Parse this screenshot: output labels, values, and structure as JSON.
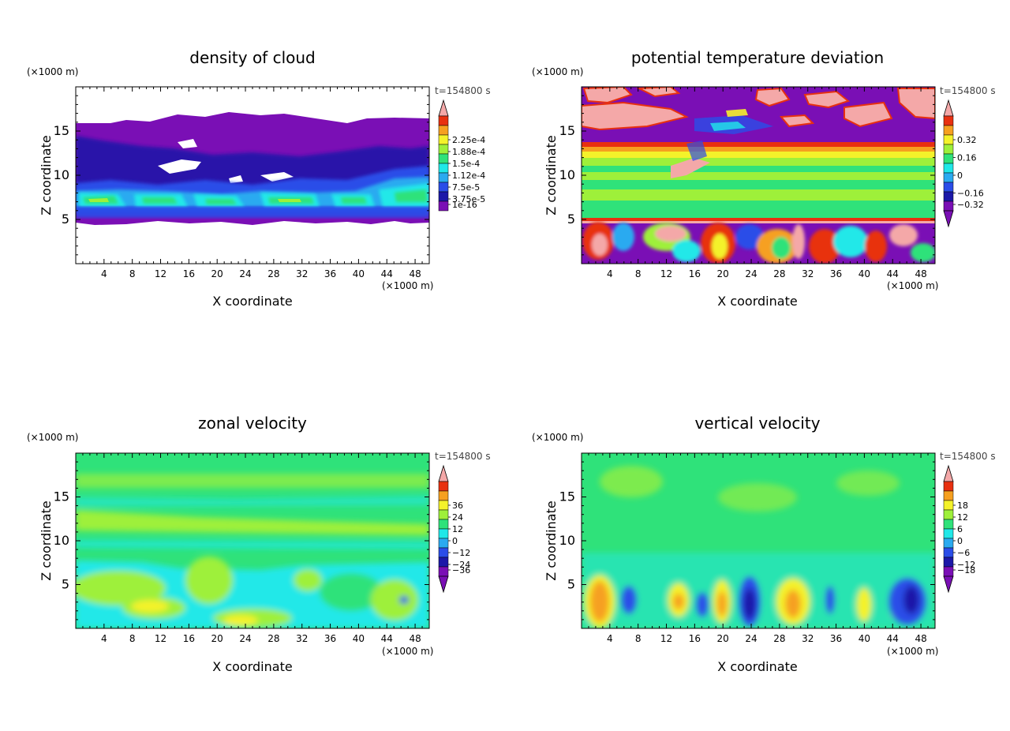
{
  "figure": {
    "colors": {
      "purple": "#7a0fb5",
      "navy": "#1c18a8",
      "blue": "#2a4de8",
      "lightblue": "#2aaaf0",
      "cyan": "#20e8e8",
      "green": "#2fe27a",
      "lime": "#9ef03a",
      "yellow": "#f4f22a",
      "orange": "#f6a020",
      "red": "#e83010",
      "pink": "#f4a8a8",
      "white": "#ffffff"
    }
  },
  "chart_data": [
    {
      "type": "heatmap",
      "title": "density of cloud",
      "time_label": "t=154800 s",
      "xlabel": "X coordinate",
      "ylabel": "Z coordinate",
      "x_unit": "(×1000 m)",
      "y_unit": "(×1000 m)",
      "xlim": [
        0,
        50
      ],
      "ylim": [
        0,
        20
      ],
      "x_ticks": [
        4,
        8,
        12,
        16,
        20,
        24,
        28,
        32,
        36,
        40,
        44,
        48
      ],
      "y_ticks": [
        5,
        10,
        15
      ],
      "colorbar_labels": [
        "2.25e-4",
        "1.88e-4",
        "1.5e-4",
        "1.12e-4",
        "7.5e-5",
        "3.75e-5",
        "1e-16"
      ],
      "colorbar_levels": [
        "pink",
        "red",
        "orange",
        "yellow",
        "lime",
        "green",
        "cyan",
        "lightblue",
        "blue",
        "navy",
        "purple"
      ],
      "under_color": "white",
      "colorbar_triangle_bottom": false
    },
    {
      "type": "heatmap",
      "title": "potential temperature deviation",
      "time_label": "t=154800 s",
      "xlabel": "X coordinate",
      "ylabel": "Z coordinate",
      "x_unit": "(×1000 m)",
      "y_unit": "(×1000 m)",
      "xlim": [
        0,
        50
      ],
      "ylim": [
        0,
        20
      ],
      "x_ticks": [
        4,
        8,
        12,
        16,
        20,
        24,
        28,
        32,
        36,
        40,
        44,
        48
      ],
      "y_ticks": [
        5,
        10,
        15
      ],
      "colorbar_labels": [
        "0.32",
        "0.16",
        "0",
        "−0.16",
        "−0.32"
      ],
      "colorbar_levels": [
        "pink",
        "red",
        "orange",
        "yellow",
        "lime",
        "green",
        "cyan",
        "lightblue",
        "blue",
        "navy",
        "purple"
      ],
      "colorbar_triangle_bottom": true
    },
    {
      "type": "heatmap",
      "title": "zonal velocity",
      "time_label": "t=154800 s",
      "xlabel": "X coordinate",
      "ylabel": "Z coordinate",
      "x_unit": "(×1000 m)",
      "y_unit": "(×1000 m)",
      "xlim": [
        0,
        50
      ],
      "ylim": [
        0,
        20
      ],
      "x_ticks": [
        4,
        8,
        12,
        16,
        20,
        24,
        28,
        32,
        36,
        40,
        44,
        48
      ],
      "y_ticks": [
        5,
        10,
        15
      ],
      "colorbar_labels": [
        "36",
        "24",
        "12",
        "0",
        "−12",
        "−24",
        "−36"
      ],
      "colorbar_levels": [
        "pink",
        "red",
        "orange",
        "yellow",
        "lime",
        "green",
        "cyan",
        "lightblue",
        "blue",
        "navy",
        "purple"
      ],
      "colorbar_triangle_bottom": true
    },
    {
      "type": "heatmap",
      "title": "vertical velocity",
      "time_label": "t=154800 s",
      "xlabel": "X coordinate",
      "ylabel": "Z coordinate",
      "x_unit": "(×1000 m)",
      "y_unit": "(×1000 m)",
      "xlim": [
        0,
        50
      ],
      "ylim": [
        0,
        20
      ],
      "x_ticks": [
        4,
        8,
        12,
        16,
        20,
        24,
        28,
        32,
        36,
        40,
        44,
        48
      ],
      "y_ticks": [
        5,
        10,
        15
      ],
      "colorbar_labels": [
        "18",
        "12",
        "6",
        "0",
        "−6",
        "−12",
        "−18"
      ],
      "colorbar_levels": [
        "pink",
        "red",
        "orange",
        "yellow",
        "lime",
        "green",
        "cyan",
        "lightblue",
        "blue",
        "navy",
        "purple"
      ],
      "colorbar_triangle_bottom": true
    }
  ]
}
